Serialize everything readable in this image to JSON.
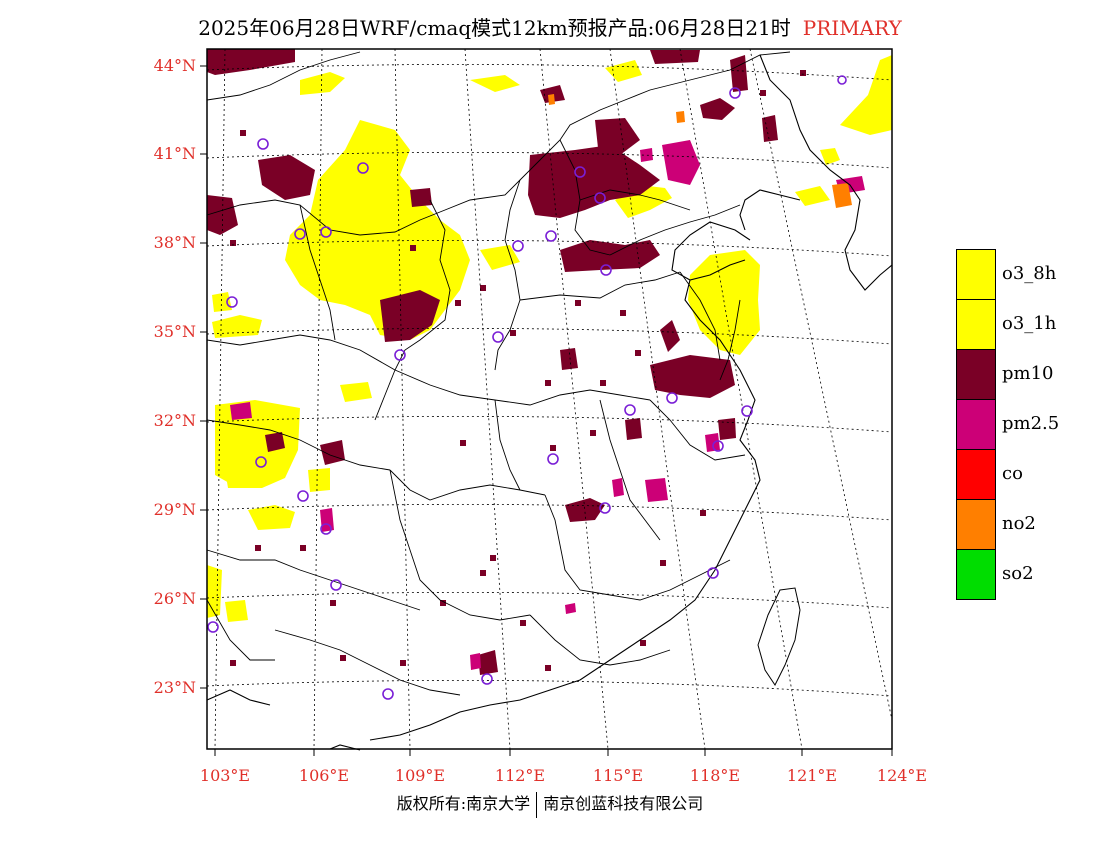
{
  "title": {
    "main": "2025年06月28日WRF/cmaq模式12km预报产品:06月28日21时",
    "tag": "PRIMARY"
  },
  "colors": {
    "o3_8h": "#ffff00",
    "o3_1h": "#ffff00",
    "pm10": "#7a0026",
    "pm25": "#cc0077",
    "co": "#ff0000",
    "no2": "#ff7f00",
    "so2": "#00dd00",
    "axis_label": "#e0302a",
    "station": "#7a1fd6"
  },
  "lat_labels": [
    "44°N",
    "41°N",
    "38°N",
    "35°N",
    "32°N",
    "29°N",
    "26°N",
    "23°N"
  ],
  "lon_labels": [
    "103°E",
    "106°E",
    "109°E",
    "112°E",
    "115°E",
    "118°E",
    "121°E",
    "124°E"
  ],
  "legend": {
    "items": [
      {
        "label": "o3_8h",
        "color": "#ffff00"
      },
      {
        "label": "o3_1h",
        "color": "#ffff00"
      },
      {
        "label": "pm10",
        "color": "#7a0026"
      },
      {
        "label": "pm2.5",
        "color": "#cc0077"
      },
      {
        "label": "co",
        "color": "#ff0000"
      },
      {
        "label": "no2",
        "color": "#ff7f00"
      },
      {
        "label": "so2",
        "color": "#00dd00"
      }
    ]
  },
  "copyright": {
    "left": "版权所有:南京大学",
    "right": "南京创蓝科技有限公司"
  }
}
